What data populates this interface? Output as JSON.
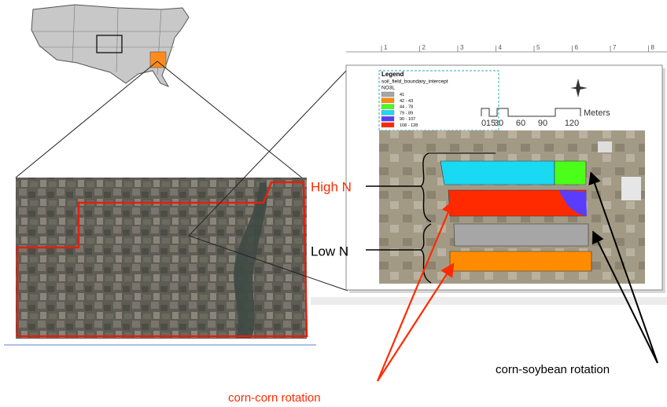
{
  "labels": {
    "high_n": "High N",
    "low_n": "Low N",
    "corn_corn": "corn-corn rotation",
    "corn_soybean": "corn-soybean rotation"
  },
  "ruler": [
    "1",
    "2",
    "3",
    "4",
    "5",
    "6",
    "7",
    "8"
  ],
  "legend": {
    "title": "Legend",
    "layer": "soil_field_boundary_intercept",
    "field": "NO3L",
    "classes": [
      {
        "label": "41",
        "color": "#a6a6a6"
      },
      {
        "label": "42 - 43",
        "color": "#ff8c00"
      },
      {
        "label": "44 - 78",
        "color": "#4cff1a"
      },
      {
        "label": "79 - 89",
        "color": "#1ad9f2"
      },
      {
        "label": "90 - 107",
        "color": "#5a3cff"
      },
      {
        "label": "108 - 128",
        "color": "#ff2a00"
      }
    ]
  },
  "scale_bar": {
    "unit": "Meters",
    "labels": [
      "0",
      "15",
      "30",
      "60",
      "90",
      "120"
    ]
  }
}
